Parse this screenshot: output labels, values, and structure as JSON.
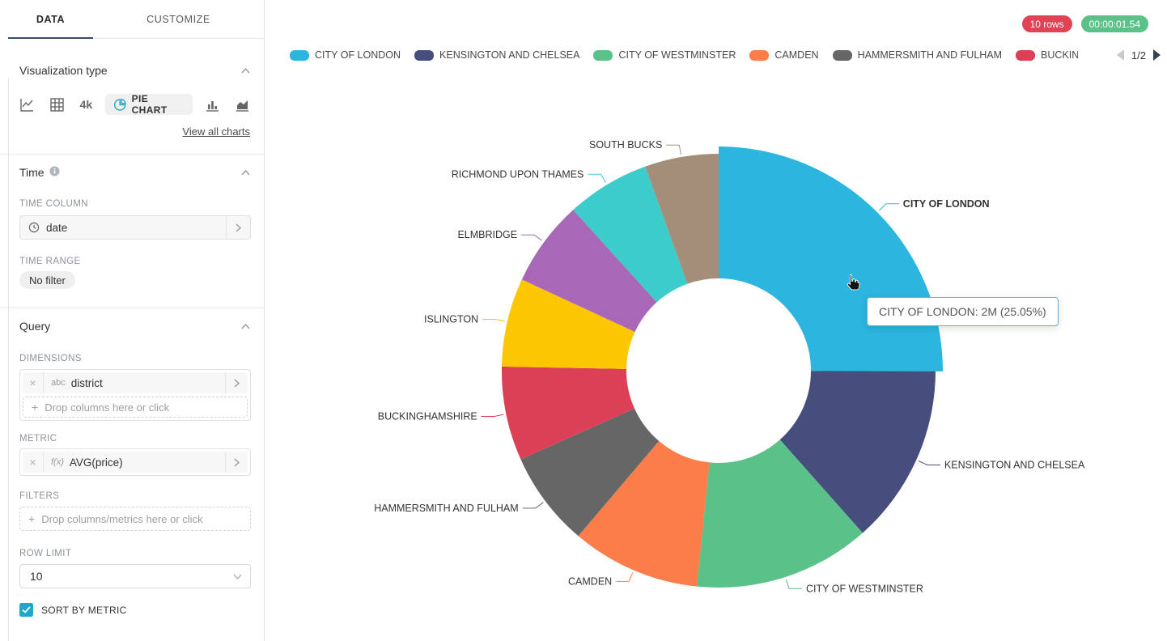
{
  "colors": {
    "accent": "#20a7c9",
    "tab_underline": "#3e4968",
    "rows_badge": "#e04355",
    "duration_badge": "#5ac189",
    "tooltip_border": "#58b2d4"
  },
  "sidebar": {
    "tabs": [
      {
        "label": "DATA",
        "active": true
      },
      {
        "label": "CUSTOMIZE",
        "active": false
      }
    ],
    "viz_section": {
      "title": "Visualization type",
      "big_number_label": "4k",
      "selected_chart_label": "PIE CHART",
      "view_all_label": "View all charts"
    },
    "time_section": {
      "title": "Time",
      "time_column_label": "TIME COLUMN",
      "time_column_value": "date",
      "time_range_label": "TIME RANGE",
      "time_range_value": "No filter"
    },
    "query_section": {
      "title": "Query",
      "dimensions_label": "DIMENSIONS",
      "dimension_chip": {
        "type_tag": "abc",
        "value": "district"
      },
      "dimensions_placeholder": "Drop columns here or click",
      "metric_label": "METRIC",
      "metric_chip": {
        "type_tag": "f(x)",
        "value": "AVG(price)"
      },
      "filters_label": "FILTERS",
      "filters_placeholder": "Drop columns/metrics here or click",
      "row_limit_label": "ROW LIMIT",
      "row_limit_value": "10",
      "sort_by_metric_label": "SORT BY METRIC",
      "sort_by_metric_checked": true
    }
  },
  "header": {
    "rows_badge": "10 rows",
    "duration_badge": "00:00:01.54"
  },
  "legend": {
    "items": [
      {
        "label": "CITY OF LONDON",
        "color": "#2cb6df"
      },
      {
        "label": "KENSINGTON AND CHELSEA",
        "color": "#454e7c"
      },
      {
        "label": "CITY OF WESTMINSTER",
        "color": "#5ac189"
      },
      {
        "label": "CAMDEN",
        "color": "#fb7d49"
      },
      {
        "label": "HAMMERSMITH AND FULHAM",
        "color": "#666666"
      },
      {
        "label": "BUCKINGHAMSHIRE",
        "color": "#dc4056"
      },
      {
        "label": "",
        "color": "#fcc700",
        "truncated": true
      }
    ],
    "page_label": "1/2",
    "prev_enabled": false,
    "next_enabled": true
  },
  "tooltip": {
    "text": "CITY OF LONDON: 2M (25.05%)"
  },
  "chart_data": {
    "type": "pie",
    "donut": true,
    "dimension": "district",
    "metric": "AVG(price)",
    "legend_position": "top",
    "hovered_slice": "CITY OF LONDON",
    "hovered_value_label": "2M",
    "hovered_percent": 25.05,
    "slices": [
      {
        "name": "CITY OF LONDON",
        "percent": 25.05,
        "color": "#2cb6df",
        "value_label": "2M"
      },
      {
        "name": "KENSINGTON AND CHELSEA",
        "percent": 13.4,
        "color": "#454e7c"
      },
      {
        "name": "CITY OF WESTMINSTER",
        "percent": 13.15,
        "color": "#5ac189"
      },
      {
        "name": "CAMDEN",
        "percent": 9.6,
        "color": "#fb7d49"
      },
      {
        "name": "HAMMERSMITH AND FULHAM",
        "percent": 7.1,
        "color": "#666666"
      },
      {
        "name": "BUCKINGHAMSHIRE",
        "percent": 7.0,
        "color": "#dc4056"
      },
      {
        "name": "ISLINGTON",
        "percent": 6.6,
        "color": "#fcc700"
      },
      {
        "name": "ELMBRIDGE",
        "percent": 6.4,
        "color": "#a868b7"
      },
      {
        "name": "RICHMOND UPON THAMES",
        "percent": 6.2,
        "color": "#3ccccb"
      },
      {
        "name": "SOUTH BUCKS",
        "percent": 5.5,
        "color": "#a38f79"
      }
    ]
  }
}
